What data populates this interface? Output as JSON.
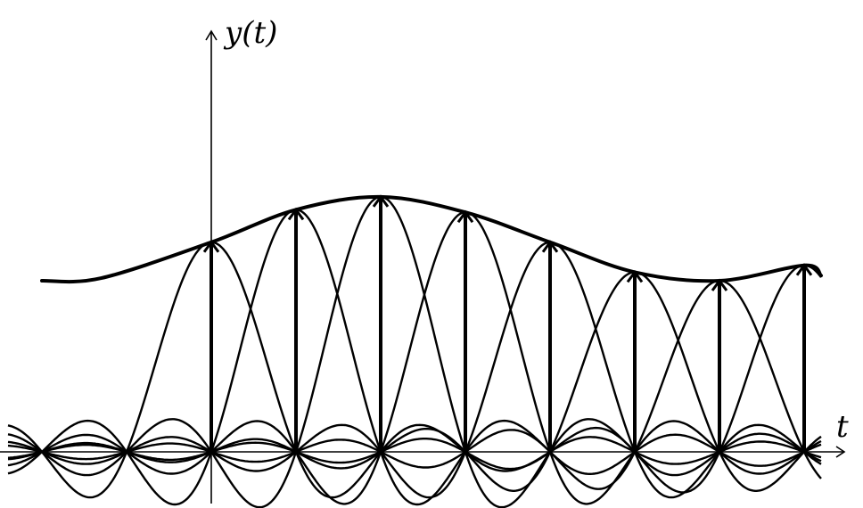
{
  "labels": {
    "y_axis": "y(t)",
    "x_axis": "t"
  },
  "diagram": {
    "description_type": "sinc-interpolation",
    "sample_period": 1,
    "samples": [
      {
        "n": 0,
        "value": 2.45
      },
      {
        "n": 1,
        "value": 2.83
      },
      {
        "n": 2,
        "value": 2.98
      },
      {
        "n": 3,
        "value": 2.8
      },
      {
        "n": 4,
        "value": 2.45
      },
      {
        "n": 5,
        "value": 2.1
      },
      {
        "n": 6,
        "value": 2.0
      },
      {
        "n": 7,
        "value": 2.18
      }
    ],
    "envelope_start_t": -2,
    "envelope_start_value": 2.0
  }
}
